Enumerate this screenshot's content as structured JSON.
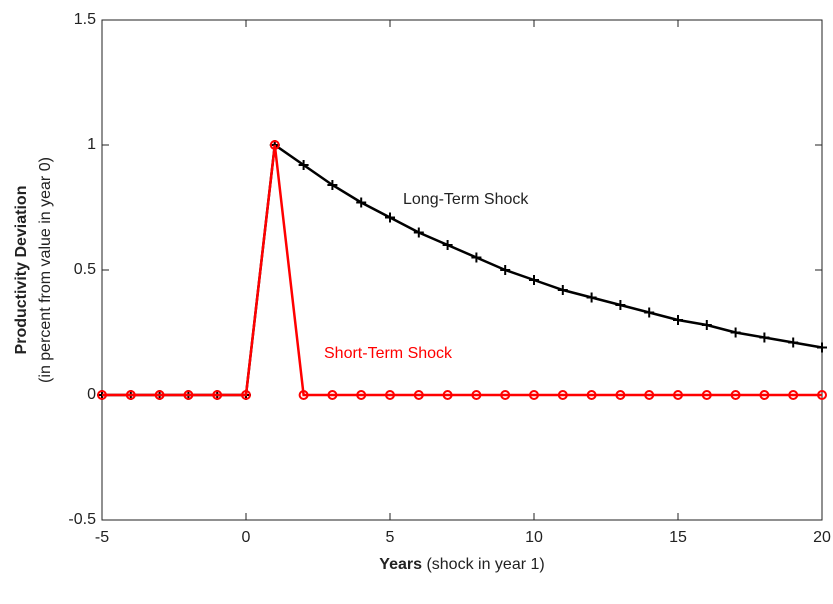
{
  "chart_data": {
    "type": "line",
    "y_label_bold": "Productivity Deviation",
    "y_label": "(in percent from value in year 0)",
    "x_label_bold": "Years",
    "x_label": " (shock in year 1)",
    "x": [
      -5,
      -4,
      -3,
      -2,
      -1,
      0,
      1,
      2,
      3,
      4,
      5,
      6,
      7,
      8,
      9,
      10,
      11,
      12,
      13,
      14,
      15,
      16,
      17,
      18,
      19,
      20
    ],
    "series": [
      {
        "name": "Long-Term Shock",
        "color": "#000000",
        "marker": "plus",
        "values": [
          0,
          0,
          0,
          0,
          0,
          0,
          1,
          0.92,
          0.84,
          0.77,
          0.71,
          0.65,
          0.6,
          0.55,
          0.5,
          0.46,
          0.42,
          0.39,
          0.36,
          0.33,
          0.3,
          0.28,
          0.25,
          0.23,
          0.21,
          0.19
        ]
      },
      {
        "name": "Short-Term Shock",
        "color": "#ff0000",
        "marker": "circle",
        "values": [
          0,
          0,
          0,
          0,
          0,
          0,
          1,
          0,
          0,
          0,
          0,
          0,
          0,
          0,
          0,
          0,
          0,
          0,
          0,
          0,
          0,
          0,
          0,
          0,
          0,
          0
        ]
      }
    ],
    "xlim": [
      -5,
      20
    ],
    "xticks": [
      -5,
      0,
      5,
      10,
      15,
      20
    ],
    "ylim": [
      -0.5,
      1.5
    ],
    "yticks": [
      -0.5,
      0,
      0.5,
      1,
      1.5
    ],
    "grid": false
  }
}
